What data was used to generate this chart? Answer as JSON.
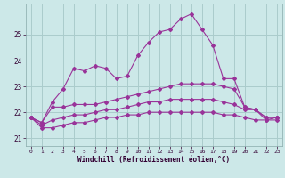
{
  "x": [
    0,
    1,
    2,
    3,
    4,
    5,
    6,
    7,
    8,
    9,
    10,
    11,
    12,
    13,
    14,
    15,
    16,
    17,
    18,
    19,
    20,
    21,
    22,
    23
  ],
  "line_max": [
    21.8,
    21.6,
    22.4,
    22.9,
    23.7,
    23.6,
    23.8,
    23.7,
    23.3,
    23.4,
    24.2,
    24.7,
    25.1,
    25.2,
    25.6,
    25.8,
    25.2,
    24.6,
    23.3,
    23.3,
    22.2,
    22.1,
    21.7,
    21.8
  ],
  "line_up": [
    21.8,
    21.6,
    22.2,
    22.2,
    22.3,
    22.3,
    22.3,
    22.4,
    22.5,
    22.6,
    22.7,
    22.8,
    22.9,
    23.0,
    23.1,
    23.1,
    23.1,
    23.1,
    23.0,
    22.9,
    22.2,
    22.1,
    21.8,
    21.8
  ],
  "line_down": [
    21.8,
    21.5,
    21.7,
    21.8,
    21.9,
    21.9,
    22.0,
    22.1,
    22.1,
    22.2,
    22.3,
    22.4,
    22.4,
    22.5,
    22.5,
    22.5,
    22.5,
    22.5,
    22.4,
    22.3,
    22.1,
    22.1,
    21.8,
    21.8
  ],
  "line_min": [
    21.8,
    21.4,
    21.4,
    21.5,
    21.6,
    21.6,
    21.7,
    21.8,
    21.8,
    21.9,
    21.9,
    22.0,
    22.0,
    22.0,
    22.0,
    22.0,
    22.0,
    22.0,
    21.9,
    21.9,
    21.8,
    21.7,
    21.7,
    21.7
  ],
  "color": "#993399",
  "background": "#cce8e8",
  "grid_color": "#aacccc",
  "ylim_min": 20.7,
  "ylim_max": 26.2,
  "yticks": [
    21,
    22,
    23,
    24,
    25
  ],
  "xlabel": "Windchill (Refroidissement éolien,°C)"
}
